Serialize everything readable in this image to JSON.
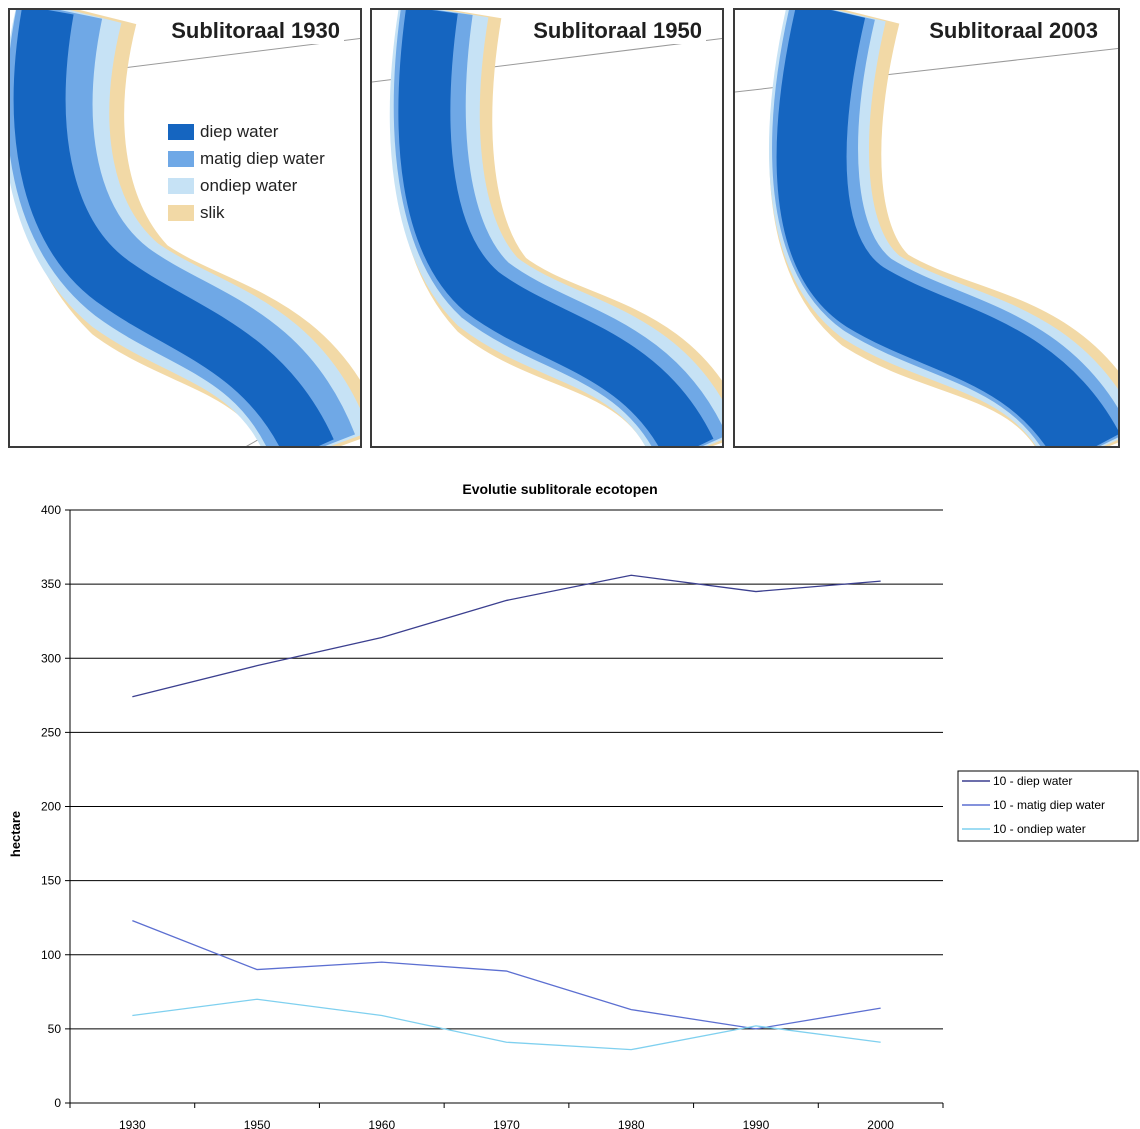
{
  "maps": [
    {
      "title": "Sublitoraal 1930"
    },
    {
      "title": "Sublitoraal 1950"
    },
    {
      "title": "Sublitoraal 2003"
    }
  ],
  "map_legend": [
    {
      "label": "diep water",
      "color": "#1565c0"
    },
    {
      "label": "matig diep water",
      "color": "#6fa8e6"
    },
    {
      "label": "ondiep water",
      "color": "#c6e2f5"
    },
    {
      "label": "slik",
      "color": "#f2d9a6"
    }
  ],
  "chart_data": {
    "type": "line",
    "title": "Evolutie sublitorale ecotopen",
    "xlabel": "",
    "ylabel": "hectare",
    "categories": [
      "1930",
      "1950",
      "1960",
      "1970",
      "1980",
      "1990",
      "2000"
    ],
    "ylim": [
      0,
      400
    ],
    "yticks": [
      0,
      50,
      100,
      150,
      200,
      250,
      300,
      350,
      400
    ],
    "grid": true,
    "legend_position": "right",
    "series": [
      {
        "name": "10 - diep water",
        "color": "#3b3f8f",
        "values": [
          274,
          295,
          314,
          339,
          356,
          345,
          352
        ]
      },
      {
        "name": "10 - matig diep water",
        "color": "#5c6fd1",
        "values": [
          123,
          90,
          95,
          89,
          63,
          50,
          64
        ]
      },
      {
        "name": "10 - ondiep water",
        "color": "#7fd0ef",
        "values": [
          59,
          70,
          59,
          41,
          36,
          52,
          41
        ]
      }
    ]
  }
}
